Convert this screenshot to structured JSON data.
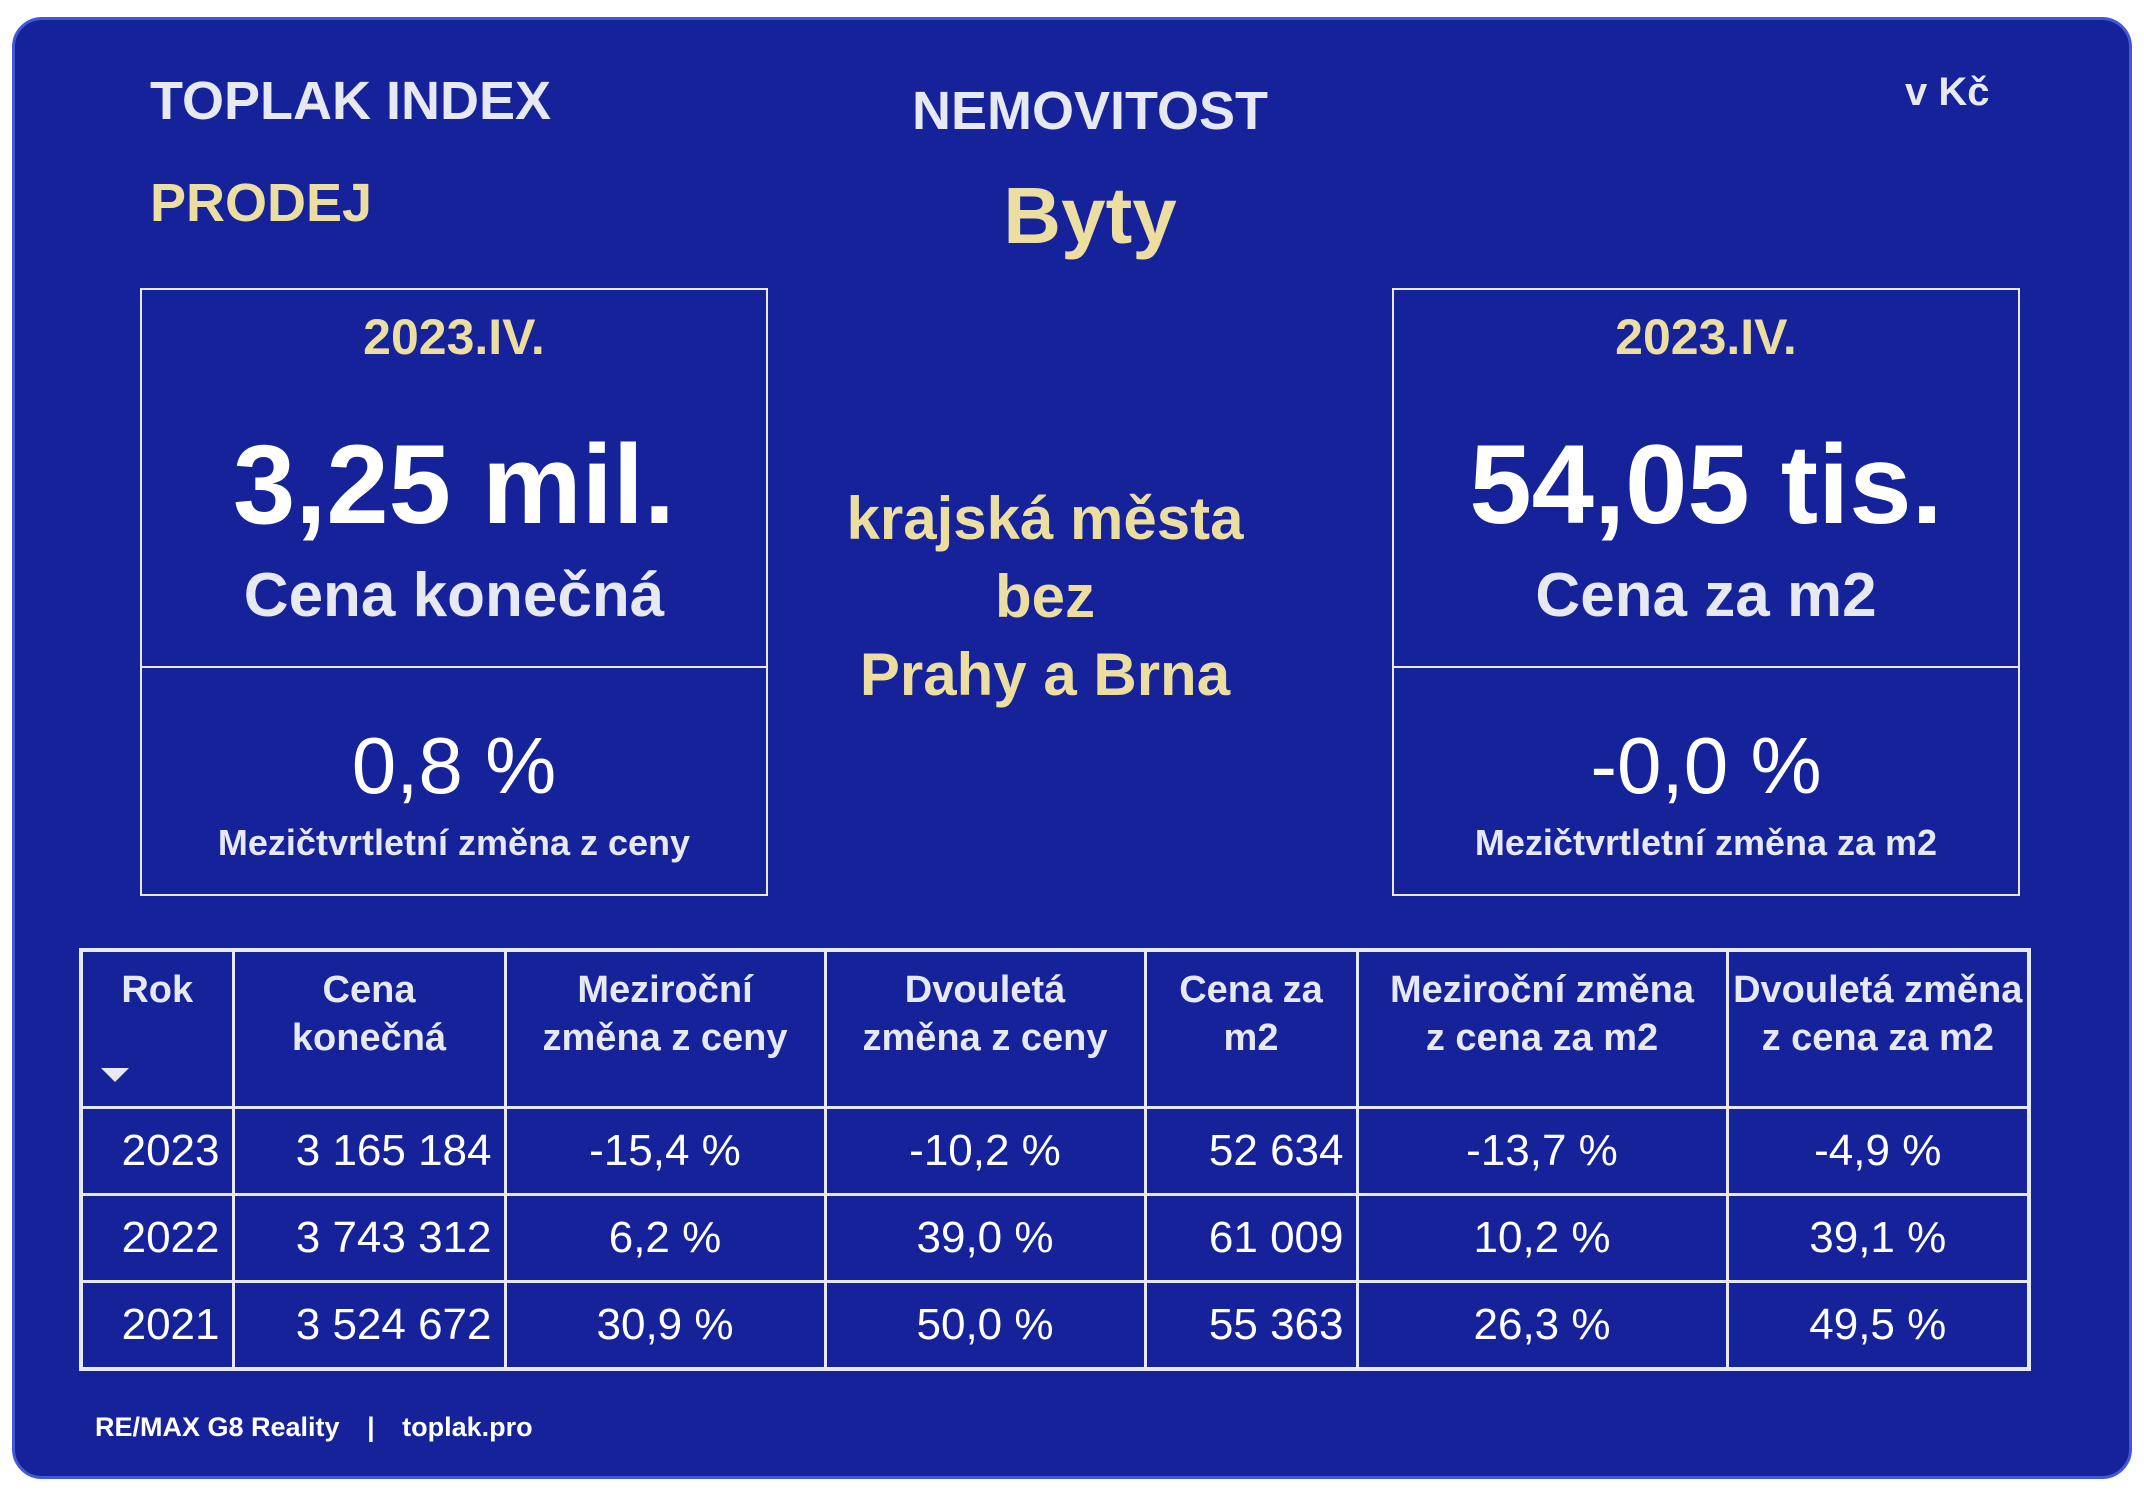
{
  "header": {
    "brand": "TOPLAK INDEX",
    "mode": "PRODEJ",
    "category": "NEMOVITOST",
    "property_type": "Byty",
    "currency": "v Kč"
  },
  "region": {
    "line1": "krajská města",
    "line2": "bez",
    "line3": "Prahy a Brna"
  },
  "left_box": {
    "period": "2023.IV.",
    "value": "3,25 mil.",
    "label": "Cena konečná",
    "change_value": "0,8 %",
    "change_label": "Mezičtvrtletní změna z ceny"
  },
  "right_box": {
    "period": "2023.IV.",
    "value": "54,05 tis.",
    "label": "Cena za m2",
    "change_value": "-0,0 %",
    "change_label": "Mezičtvrtletní změna za m2"
  },
  "table": {
    "headers": [
      [
        "Rok"
      ],
      [
        "Cena",
        "konečná"
      ],
      [
        "Meziroční",
        "změna z ceny"
      ],
      [
        "Dvouletá",
        "změna z ceny"
      ],
      [
        "Cena za",
        "m2"
      ],
      [
        "Meziroční změna",
        "z cena za m2"
      ],
      [
        "Dvouletá změna",
        "z cena za m2"
      ]
    ],
    "rows": [
      [
        "2023",
        "3 165 184",
        "-15,4 %",
        "-10,2 %",
        "52 634",
        "-13,7 %",
        "-4,9 %"
      ],
      [
        "2022",
        "3 743 312",
        "6,2 %",
        "39,0 %",
        "61 009",
        "10,2 %",
        "39,1 %"
      ],
      [
        "2021",
        "3 524 672",
        "30,9 %",
        "50,0 %",
        "55 363",
        "26,3 %",
        "49,5 %"
      ]
    ]
  },
  "footer": {
    "company": "RE/MAX G8 Reality",
    "separator": "|",
    "website": "toplak.pro"
  },
  "colors": {
    "background": "#15229a",
    "accent": "#ecdda0",
    "text": "#e6e8f2"
  },
  "icons": {
    "sort": "sort-down-icon"
  }
}
